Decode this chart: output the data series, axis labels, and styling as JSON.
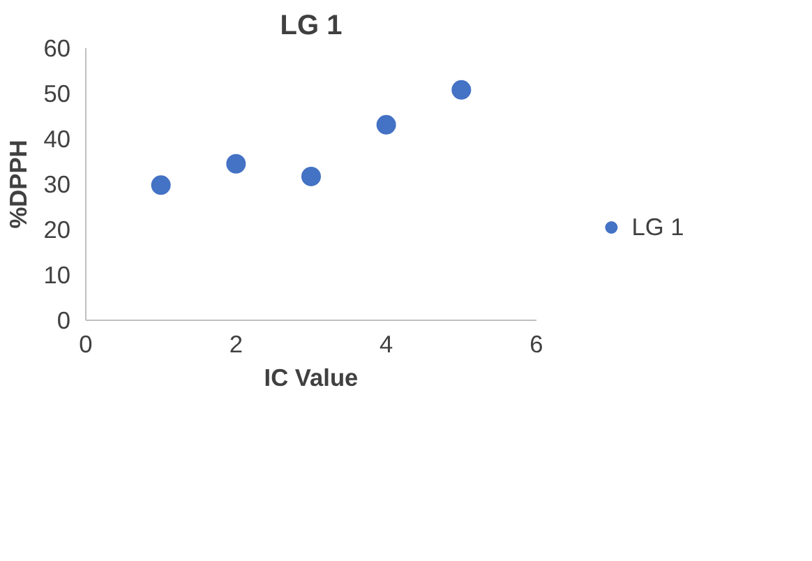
{
  "chart_data": {
    "type": "scatter",
    "title": "LG 1",
    "xlabel": "IC Value",
    "ylabel": "%DPPH",
    "x": [
      1,
      2,
      3,
      4,
      5
    ],
    "series": [
      {
        "name": "LG 1",
        "color": "#4472c4",
        "values": [
          29.8,
          34.5,
          31.7,
          43.1,
          50.8
        ]
      }
    ],
    "xlim": [
      0,
      6
    ],
    "xticks": [
      0,
      2,
      4,
      6
    ],
    "ylim": [
      0,
      60
    ],
    "yticks": [
      0,
      10,
      20,
      30,
      40,
      50,
      60
    ],
    "grid": false,
    "legend": "right",
    "marker": "circle"
  }
}
